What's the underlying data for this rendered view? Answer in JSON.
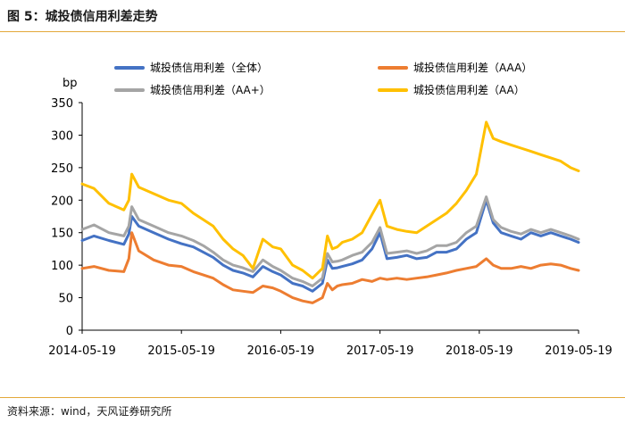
{
  "figure_title": "图 5：城投债信用利差走势",
  "source": "资料来源：wind，天风证券研究所",
  "colors": {
    "rule": "#e3a83a"
  },
  "chart_data": {
    "type": "line",
    "ylabel": "bp",
    "xlabel": "",
    "ylim": [
      0,
      350
    ],
    "yticks": [
      0,
      50,
      100,
      150,
      200,
      250,
      300,
      350
    ],
    "xlim": [
      2014.38,
      2019.38
    ],
    "xticks": [
      {
        "value": 2014.38,
        "label": "2014-05-19"
      },
      {
        "value": 2015.38,
        "label": "2015-05-19"
      },
      {
        "value": 2016.38,
        "label": "2016-05-19"
      },
      {
        "value": 2017.38,
        "label": "2017-05-19"
      },
      {
        "value": 2018.38,
        "label": "2018-05-19"
      },
      {
        "value": 2019.38,
        "label": "2019-05-19"
      }
    ],
    "grid": false,
    "x": [
      2014.38,
      2014.5,
      2014.65,
      2014.8,
      2014.85,
      2014.88,
      2014.95,
      2015.1,
      2015.25,
      2015.38,
      2015.5,
      2015.6,
      2015.7,
      2015.8,
      2015.9,
      2016.0,
      2016.1,
      2016.2,
      2016.3,
      2016.38,
      2016.5,
      2016.6,
      2016.7,
      2016.8,
      2016.85,
      2016.9,
      2016.95,
      2017.0,
      2017.1,
      2017.2,
      2017.3,
      2017.38,
      2017.45,
      2017.55,
      2017.65,
      2017.75,
      2017.85,
      2017.95,
      2018.05,
      2018.15,
      2018.25,
      2018.35,
      2018.45,
      2018.52,
      2018.6,
      2018.7,
      2018.8,
      2018.9,
      2019.0,
      2019.1,
      2019.2,
      2019.3,
      2019.38
    ],
    "series": [
      {
        "name": "城投债信用利差（全体）",
        "color": "#4472c4",
        "values": [
          138,
          145,
          138,
          132,
          148,
          175,
          160,
          150,
          140,
          133,
          128,
          120,
          112,
          100,
          92,
          88,
          82,
          98,
          90,
          85,
          72,
          68,
          60,
          72,
          108,
          95,
          96,
          98,
          102,
          108,
          125,
          150,
          110,
          112,
          115,
          110,
          112,
          120,
          120,
          125,
          140,
          150,
          200,
          165,
          150,
          145,
          140,
          150,
          145,
          150,
          145,
          140,
          135
        ]
      },
      {
        "name": "城投债信用利差（AAA）",
        "color": "#ed7d31",
        "values": [
          95,
          98,
          92,
          90,
          110,
          150,
          122,
          108,
          100,
          98,
          90,
          85,
          80,
          70,
          62,
          60,
          58,
          68,
          65,
          60,
          50,
          45,
          42,
          50,
          72,
          62,
          68,
          70,
          72,
          78,
          75,
          80,
          78,
          80,
          78,
          80,
          82,
          85,
          88,
          92,
          95,
          98,
          110,
          100,
          95,
          95,
          98,
          95,
          100,
          102,
          100,
          95,
          92
        ]
      },
      {
        "name": "城投债信用利差（AA+）",
        "color": "#a5a5a5",
        "values": [
          155,
          162,
          150,
          145,
          160,
          190,
          170,
          160,
          150,
          145,
          138,
          130,
          120,
          108,
          100,
          96,
          90,
          108,
          98,
          92,
          80,
          75,
          68,
          80,
          118,
          105,
          106,
          108,
          115,
          120,
          135,
          158,
          118,
          120,
          122,
          118,
          122,
          130,
          130,
          135,
          150,
          160,
          205,
          170,
          158,
          152,
          148,
          155,
          150,
          155,
          150,
          145,
          140
        ]
      },
      {
        "name": "城投债信用利差（AA）",
        "color": "#ffc000",
        "values": [
          225,
          218,
          195,
          185,
          200,
          240,
          220,
          210,
          200,
          195,
          180,
          170,
          160,
          140,
          125,
          115,
          95,
          140,
          128,
          125,
          100,
          92,
          80,
          95,
          145,
          125,
          128,
          135,
          140,
          150,
          178,
          200,
          160,
          155,
          152,
          150,
          160,
          170,
          180,
          195,
          215,
          240,
          320,
          295,
          290,
          285,
          280,
          275,
          270,
          265,
          260,
          250,
          245
        ]
      }
    ]
  }
}
